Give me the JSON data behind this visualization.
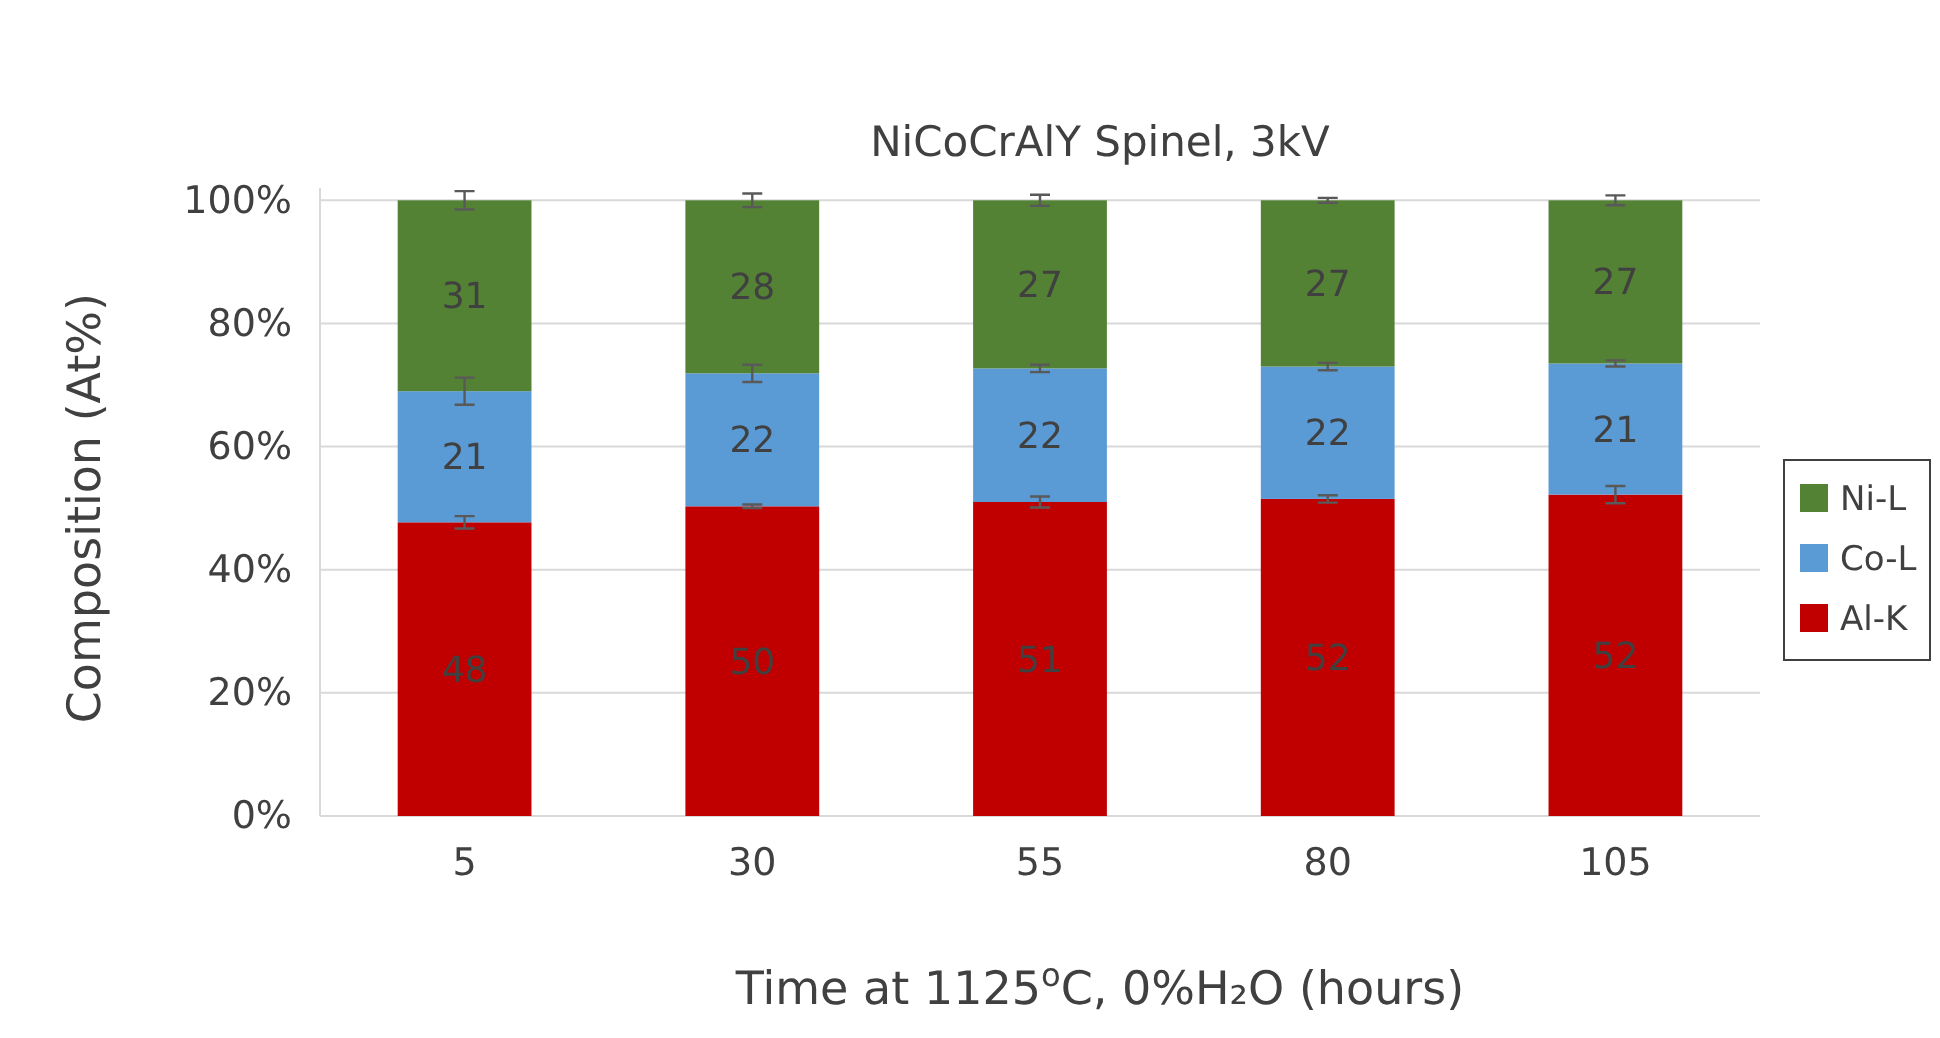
{
  "chart_data": {
    "type": "bar",
    "title": "NiCoCrAlY Spinel, 3kV",
    "xlabel": "Time at 1125$^{o}$C, 0%H₂O (hours)",
    "ylabel": "Composition (At%)",
    "categories": [
      "5",
      "30",
      "55",
      "80",
      "105"
    ],
    "stacked": true,
    "series": [
      {
        "name": "Al-K",
        "color": "#c00000",
        "values": [
          47.7,
          50.3,
          51.0,
          51.5,
          52.2
        ],
        "errors": [
          1.0,
          0.3,
          0.9,
          0.6,
          1.4
        ],
        "value_labels": [
          "48",
          "50",
          "51",
          "52",
          "52"
        ]
      },
      {
        "name": "Co-L",
        "color": "#5b9bd5",
        "values": [
          21.3,
          21.6,
          21.7,
          21.5,
          21.3
        ],
        "errors": [
          2.2,
          1.4,
          0.6,
          0.6,
          0.5
        ],
        "value_labels": [
          "21",
          "22",
          "22",
          "22",
          "21"
        ]
      },
      {
        "name": "Ni-L",
        "color": "#548235",
        "values": [
          31.0,
          28.1,
          27.3,
          27.0,
          26.5
        ],
        "errors": [
          1.5,
          1.1,
          0.9,
          0.4,
          0.8
        ],
        "value_labels": [
          "31",
          "28",
          "27",
          "27",
          "27"
        ]
      }
    ],
    "ylim": [
      0,
      102
    ],
    "yticks": [
      {
        "value": 0,
        "label": "0%"
      },
      {
        "value": 20,
        "label": "20%"
      },
      {
        "value": 40,
        "label": "40%"
      },
      {
        "value": 60,
        "label": "60%"
      },
      {
        "value": 80,
        "label": "80%"
      },
      {
        "value": 100,
        "label": "100%"
      }
    ],
    "grid": "y",
    "legend": "right"
  }
}
